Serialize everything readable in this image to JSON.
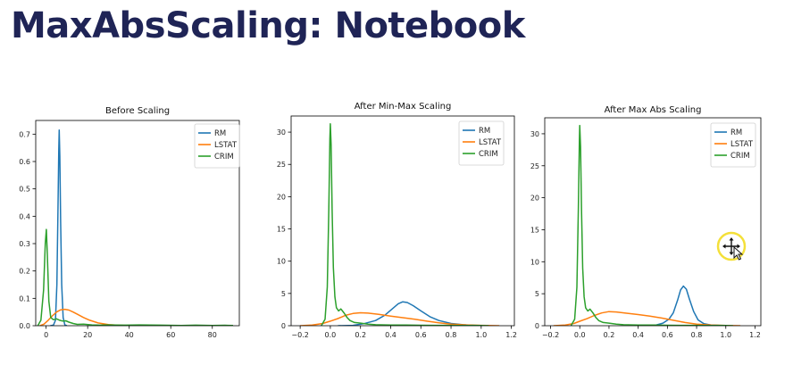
{
  "slide": {
    "title": "MaxAbsScaling: Notebook"
  },
  "chart_data": [
    {
      "type": "line",
      "title": "Before Scaling",
      "xlim": [
        -5,
        93
      ],
      "ylim": [
        0,
        0.75
      ],
      "xticks": [
        {
          "v": 0,
          "label": "0"
        },
        {
          "v": 20,
          "label": "20"
        },
        {
          "v": 40,
          "label": "40"
        },
        {
          "v": 60,
          "label": "60"
        },
        {
          "v": 80,
          "label": "80"
        }
      ],
      "yticks": [
        {
          "v": 0,
          "label": "0.0"
        },
        {
          "v": 0.1,
          "label": "0.1"
        },
        {
          "v": 0.2,
          "label": "0.2"
        },
        {
          "v": 0.3,
          "label": "0.3"
        },
        {
          "v": 0.4,
          "label": "0.4"
        },
        {
          "v": 0.5,
          "label": "0.5"
        },
        {
          "v": 0.6,
          "label": "0.6"
        },
        {
          "v": 0.7,
          "label": "0.7"
        }
      ],
      "legend": "top-right",
      "series": [
        {
          "name": "RM",
          "color": "#1f77b4",
          "points": [
            [
              2,
              0
            ],
            [
              3.5,
              0.002
            ],
            [
              4.5,
              0.02
            ],
            [
              5.2,
              0.15
            ],
            [
              5.7,
              0.42
            ],
            [
              6.1,
              0.64
            ],
            [
              6.3,
              0.715
            ],
            [
              6.6,
              0.62
            ],
            [
              7.0,
              0.38
            ],
            [
              7.5,
              0.15
            ],
            [
              8.2,
              0.03
            ],
            [
              9,
              0.003
            ],
            [
              10,
              0
            ]
          ]
        },
        {
          "name": "LSTAT",
          "color": "#ff7f0e",
          "points": [
            [
              -3,
              0
            ],
            [
              -1,
              0.006
            ],
            [
              1,
              0.02
            ],
            [
              3,
              0.036
            ],
            [
              5,
              0.05
            ],
            [
              7,
              0.058
            ],
            [
              9,
              0.06
            ],
            [
              11,
              0.057
            ],
            [
              13,
              0.05
            ],
            [
              15,
              0.042
            ],
            [
              18,
              0.03
            ],
            [
              21,
              0.02
            ],
            [
              25,
              0.01
            ],
            [
              30,
              0.004
            ],
            [
              36,
              0.0015
            ],
            [
              42,
              0
            ]
          ]
        },
        {
          "name": "CRIM",
          "color": "#2ca02c",
          "points": [
            [
              -4,
              0
            ],
            [
              -2.5,
              0.02
            ],
            [
              -1.2,
              0.13
            ],
            [
              -0.4,
              0.3
            ],
            [
              0.1,
              0.352
            ],
            [
              0.6,
              0.26
            ],
            [
              1.3,
              0.09
            ],
            [
              2.2,
              0.03
            ],
            [
              3.5,
              0.022
            ],
            [
              5,
              0.025
            ],
            [
              6.5,
              0.02
            ],
            [
              8,
              0.017
            ],
            [
              9.5,
              0.018
            ],
            [
              11,
              0.013
            ],
            [
              13,
              0.008
            ],
            [
              15,
              0.005
            ],
            [
              18,
              0.006
            ],
            [
              22,
              0.003
            ],
            [
              26,
              0.002
            ],
            [
              30,
              0.003
            ],
            [
              38,
              0.002
            ],
            [
              45,
              0.003
            ],
            [
              55,
              0.002
            ],
            [
              65,
              0.001
            ],
            [
              72,
              0.002
            ],
            [
              80,
              0.001
            ],
            [
              86,
              0.0015
            ],
            [
              90,
              0.0005
            ]
          ]
        }
      ]
    },
    {
      "type": "line",
      "title": "After Min-Max Scaling",
      "xlim": [
        -0.26,
        1.22
      ],
      "ylim": [
        0,
        32.5
      ],
      "xticks": [
        {
          "v": -0.2,
          "label": "−0.2"
        },
        {
          "v": 0,
          "label": "0.0"
        },
        {
          "v": 0.2,
          "label": "0.2"
        },
        {
          "v": 0.4,
          "label": "0.4"
        },
        {
          "v": 0.6,
          "label": "0.6"
        },
        {
          "v": 0.8,
          "label": "0.8"
        },
        {
          "v": 1.0,
          "label": "1.0"
        },
        {
          "v": 1.2,
          "label": "1.2"
        }
      ],
      "yticks": [
        {
          "v": 0,
          "label": "0"
        },
        {
          "v": 5,
          "label": "5"
        },
        {
          "v": 10,
          "label": "10"
        },
        {
          "v": 15,
          "label": "15"
        },
        {
          "v": 20,
          "label": "20"
        },
        {
          "v": 25,
          "label": "25"
        },
        {
          "v": 30,
          "label": "30"
        }
      ],
      "legend": "top-right",
      "series": [
        {
          "name": "RM",
          "color": "#1f77b4",
          "points": [
            [
              0.05,
              0
            ],
            [
              0.15,
              0.05
            ],
            [
              0.22,
              0.3
            ],
            [
              0.3,
              0.8
            ],
            [
              0.36,
              1.6
            ],
            [
              0.41,
              2.6
            ],
            [
              0.45,
              3.4
            ],
            [
              0.48,
              3.7
            ],
            [
              0.51,
              3.6
            ],
            [
              0.55,
              3.1
            ],
            [
              0.6,
              2.3
            ],
            [
              0.66,
              1.4
            ],
            [
              0.72,
              0.8
            ],
            [
              0.8,
              0.35
            ],
            [
              0.88,
              0.15
            ],
            [
              0.95,
              0.05
            ],
            [
              1.05,
              0.01
            ]
          ]
        },
        {
          "name": "LSTAT",
          "color": "#ff7f0e",
          "points": [
            [
              -0.2,
              0
            ],
            [
              -0.12,
              0.1
            ],
            [
              -0.05,
              0.35
            ],
            [
              0.0,
              0.7
            ],
            [
              0.05,
              1.1
            ],
            [
              0.1,
              1.6
            ],
            [
              0.15,
              1.9
            ],
            [
              0.2,
              2.0
            ],
            [
              0.25,
              1.95
            ],
            [
              0.32,
              1.75
            ],
            [
              0.4,
              1.5
            ],
            [
              0.48,
              1.25
            ],
            [
              0.56,
              1.0
            ],
            [
              0.64,
              0.7
            ],
            [
              0.72,
              0.45
            ],
            [
              0.8,
              0.25
            ],
            [
              0.9,
              0.12
            ],
            [
              1.0,
              0.05
            ],
            [
              1.12,
              0
            ]
          ]
        },
        {
          "name": "CRIM",
          "color": "#2ca02c",
          "points": [
            [
              -0.06,
              0
            ],
            [
              -0.035,
              1
            ],
            [
              -0.02,
              6
            ],
            [
              -0.01,
              18
            ],
            [
              -0.003,
              29
            ],
            [
              0.0,
              31.3
            ],
            [
              0.005,
              28
            ],
            [
              0.012,
              18
            ],
            [
              0.02,
              9
            ],
            [
              0.03,
              4.5
            ],
            [
              0.04,
              2.8
            ],
            [
              0.055,
              2.3
            ],
            [
              0.07,
              2.6
            ],
            [
              0.09,
              2.0
            ],
            [
              0.11,
              1.3
            ],
            [
              0.13,
              0.8
            ],
            [
              0.16,
              0.5
            ],
            [
              0.2,
              0.4
            ],
            [
              0.25,
              0.25
            ],
            [
              0.3,
              0.15
            ],
            [
              0.4,
              0.1
            ],
            [
              0.5,
              0.1
            ],
            [
              0.6,
              0.07
            ],
            [
              0.7,
              0.05
            ],
            [
              0.8,
              0.06
            ],
            [
              0.9,
              0.04
            ],
            [
              0.95,
              0.05
            ],
            [
              1.0,
              0.03
            ],
            [
              1.05,
              0
            ]
          ]
        }
      ]
    },
    {
      "type": "line",
      "title": "After Max Abs Scaling",
      "xlim": [
        -0.24,
        1.24
      ],
      "ylim": [
        0,
        32.5
      ],
      "xticks": [
        {
          "v": -0.2,
          "label": "−0.2"
        },
        {
          "v": 0,
          "label": "0.0"
        },
        {
          "v": 0.2,
          "label": "0.2"
        },
        {
          "v": 0.4,
          "label": "0.4"
        },
        {
          "v": 0.6,
          "label": "0.6"
        },
        {
          "v": 0.8,
          "label": "0.8"
        },
        {
          "v": 1.0,
          "label": "1.0"
        },
        {
          "v": 1.2,
          "label": "1.2"
        }
      ],
      "yticks": [
        {
          "v": 0,
          "label": "0"
        },
        {
          "v": 5,
          "label": "5"
        },
        {
          "v": 10,
          "label": "10"
        },
        {
          "v": 15,
          "label": "15"
        },
        {
          "v": 20,
          "label": "20"
        },
        {
          "v": 25,
          "label": "25"
        },
        {
          "v": 30,
          "label": "30"
        }
      ],
      "legend": "top-right",
      "series": [
        {
          "name": "RM",
          "color": "#1f77b4",
          "points": [
            [
              0.45,
              0
            ],
            [
              0.52,
              0.1
            ],
            [
              0.57,
              0.4
            ],
            [
              0.61,
              1.0
            ],
            [
              0.64,
              2.0
            ],
            [
              0.67,
              4.0
            ],
            [
              0.69,
              5.6
            ],
            [
              0.71,
              6.2
            ],
            [
              0.73,
              5.7
            ],
            [
              0.75,
              4.2
            ],
            [
              0.78,
              2.2
            ],
            [
              0.81,
              0.9
            ],
            [
              0.85,
              0.3
            ],
            [
              0.9,
              0.1
            ],
            [
              0.98,
              0
            ]
          ]
        },
        {
          "name": "LSTAT",
          "color": "#ff7f0e",
          "points": [
            [
              -0.18,
              0
            ],
            [
              -0.1,
              0.1
            ],
            [
              -0.04,
              0.35
            ],
            [
              0.0,
              0.7
            ],
            [
              0.05,
              1.1
            ],
            [
              0.1,
              1.6
            ],
            [
              0.15,
              2.0
            ],
            [
              0.2,
              2.2
            ],
            [
              0.25,
              2.15
            ],
            [
              0.32,
              1.95
            ],
            [
              0.4,
              1.75
            ],
            [
              0.48,
              1.5
            ],
            [
              0.56,
              1.2
            ],
            [
              0.64,
              0.85
            ],
            [
              0.72,
              0.5
            ],
            [
              0.8,
              0.25
            ],
            [
              0.9,
              0.1
            ],
            [
              1.0,
              0.04
            ],
            [
              1.1,
              0
            ]
          ]
        },
        {
          "name": "CRIM",
          "color": "#2ca02c",
          "points": [
            [
              -0.06,
              0
            ],
            [
              -0.035,
              1
            ],
            [
              -0.02,
              6
            ],
            [
              -0.01,
              18
            ],
            [
              -0.003,
              29
            ],
            [
              0.0,
              31.3
            ],
            [
              0.005,
              28
            ],
            [
              0.012,
              18
            ],
            [
              0.02,
              9
            ],
            [
              0.03,
              4.5
            ],
            [
              0.04,
              2.8
            ],
            [
              0.055,
              2.3
            ],
            [
              0.07,
              2.6
            ],
            [
              0.09,
              2.0
            ],
            [
              0.11,
              1.3
            ],
            [
              0.13,
              0.8
            ],
            [
              0.16,
              0.5
            ],
            [
              0.2,
              0.4
            ],
            [
              0.25,
              0.25
            ],
            [
              0.3,
              0.15
            ],
            [
              0.4,
              0.1
            ],
            [
              0.5,
              0.1
            ],
            [
              0.6,
              0.07
            ],
            [
              0.7,
              0.05
            ],
            [
              0.8,
              0.06
            ],
            [
              0.9,
              0.04
            ],
            [
              0.95,
              0.05
            ],
            [
              1.0,
              0.03
            ],
            [
              1.05,
              0
            ]
          ]
        }
      ]
    }
  ]
}
